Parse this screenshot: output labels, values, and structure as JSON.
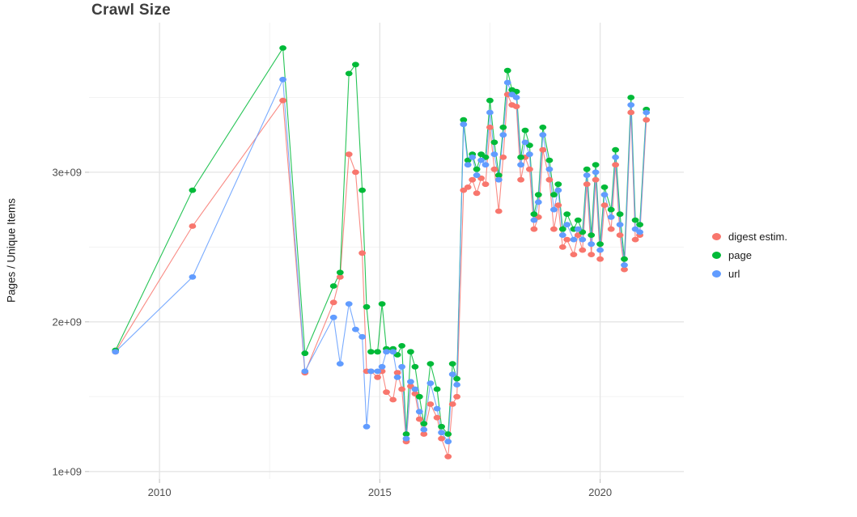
{
  "page": {
    "background": "#ffffff"
  },
  "chart_data": {
    "type": "line",
    "title": "Crawl Size",
    "xlabel": "",
    "ylabel": "Pages / Unique Items",
    "y_unit": "1e9",
    "legend_position": "right",
    "grid": true,
    "xlim": [
      2008.4,
      2021.9
    ],
    "ylim": [
      0.95,
      4.0
    ],
    "x_ticks": [
      {
        "v": 2010,
        "label": "2010"
      },
      {
        "v": 2015,
        "label": "2015"
      },
      {
        "v": 2020,
        "label": "2020"
      }
    ],
    "x_minor": [
      2012.5,
      2017.5
    ],
    "y_ticks": [
      {
        "v": 1,
        "label": "1e+09"
      },
      {
        "v": 2,
        "label": "2e+09"
      },
      {
        "v": 3,
        "label": "3e+09"
      }
    ],
    "y_minor": [
      1.5,
      2.5,
      3.5
    ],
    "x": [
      2009.0,
      2010.75,
      2012.8,
      2013.3,
      2013.95,
      2014.1,
      2014.3,
      2014.45,
      2014.6,
      2014.7,
      2014.8,
      2014.95,
      2015.05,
      2015.15,
      2015.3,
      2015.4,
      2015.5,
      2015.6,
      2015.7,
      2015.8,
      2015.9,
      2016.0,
      2016.15,
      2016.3,
      2016.4,
      2016.55,
      2016.65,
      2016.75,
      2016.9,
      2017.0,
      2017.1,
      2017.2,
      2017.3,
      2017.4,
      2017.5,
      2017.6,
      2017.7,
      2017.8,
      2017.9,
      2018.0,
      2018.1,
      2018.2,
      2018.3,
      2018.4,
      2018.5,
      2018.6,
      2018.7,
      2018.85,
      2018.95,
      2019.05,
      2019.15,
      2019.25,
      2019.4,
      2019.5,
      2019.6,
      2019.7,
      2019.8,
      2019.9,
      2020.0,
      2020.1,
      2020.25,
      2020.35,
      2020.45,
      2020.55,
      2020.7,
      2020.8,
      2020.9,
      2021.05
    ],
    "series": [
      {
        "name": "digest estim.",
        "color": "#F8766D",
        "values": [
          1.8,
          2.64,
          3.48,
          1.66,
          2.13,
          2.3,
          3.12,
          3.0,
          2.46,
          1.67,
          1.67,
          1.63,
          1.67,
          1.53,
          1.48,
          1.66,
          1.55,
          1.2,
          1.57,
          1.52,
          1.35,
          1.25,
          1.45,
          1.36,
          1.22,
          1.1,
          1.45,
          1.5,
          2.88,
          2.9,
          2.95,
          2.86,
          2.96,
          2.92,
          3.3,
          3.02,
          2.74,
          3.1,
          3.52,
          3.45,
          3.44,
          2.95,
          3.1,
          3.02,
          2.62,
          2.7,
          3.15,
          2.95,
          2.62,
          2.78,
          2.5,
          2.55,
          2.45,
          2.58,
          2.48,
          2.92,
          2.45,
          2.95,
          2.42,
          2.78,
          2.62,
          3.05,
          2.58,
          2.35,
          3.4,
          2.55,
          2.58,
          3.35
        ]
      },
      {
        "name": "page",
        "color": "#00BA38",
        "values": [
          1.81,
          2.88,
          3.83,
          1.79,
          2.24,
          2.33,
          3.66,
          3.72,
          2.88,
          2.1,
          1.8,
          1.8,
          2.12,
          1.82,
          1.82,
          1.78,
          1.84,
          1.25,
          1.8,
          1.7,
          1.5,
          1.32,
          1.72,
          1.55,
          1.3,
          1.25,
          1.72,
          1.62,
          3.35,
          3.08,
          3.12,
          3.02,
          3.12,
          3.1,
          3.48,
          3.2,
          2.98,
          3.3,
          3.68,
          3.55,
          3.54,
          3.1,
          3.28,
          3.18,
          2.72,
          2.85,
          3.3,
          3.08,
          2.85,
          2.92,
          2.62,
          2.72,
          2.62,
          2.68,
          2.6,
          3.02,
          2.58,
          3.05,
          2.52,
          2.9,
          2.75,
          3.15,
          2.72,
          2.42,
          3.5,
          2.68,
          2.65,
          3.42
        ]
      },
      {
        "name": "url",
        "color": "#619CFF",
        "values": [
          1.8,
          2.3,
          3.62,
          1.67,
          2.03,
          1.72,
          2.12,
          1.95,
          1.9,
          1.3,
          1.67,
          1.67,
          1.7,
          1.8,
          1.8,
          1.63,
          1.7,
          1.22,
          1.6,
          1.55,
          1.4,
          1.28,
          1.59,
          1.42,
          1.26,
          1.2,
          1.65,
          1.58,
          3.32,
          3.05,
          3.1,
          2.98,
          3.08,
          3.05,
          3.4,
          3.12,
          2.95,
          3.25,
          3.6,
          3.52,
          3.5,
          3.05,
          3.2,
          3.12,
          2.68,
          2.8,
          3.25,
          3.02,
          2.75,
          2.88,
          2.58,
          2.65,
          2.55,
          2.62,
          2.55,
          2.98,
          2.52,
          3.0,
          2.48,
          2.85,
          2.7,
          3.1,
          2.65,
          2.38,
          3.45,
          2.62,
          2.6,
          3.4
        ]
      }
    ]
  }
}
